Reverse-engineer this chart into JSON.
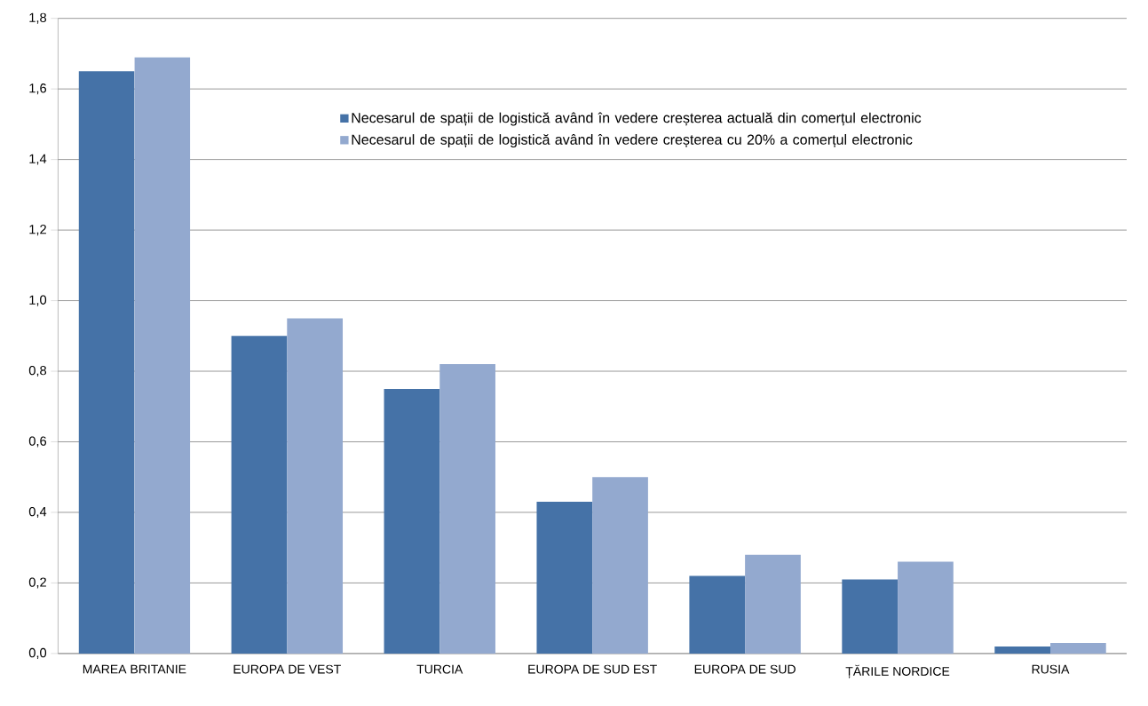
{
  "chart_data": {
    "type": "bar",
    "categories": [
      "MAREA BRITANIE",
      "EUROPA DE VEST",
      "TURCIA",
      "EUROPA DE SUD EST",
      "EUROPA DE SUD",
      "ȚĂRILE NORDICE",
      "RUSIA"
    ],
    "series": [
      {
        "name": "Necesarul de spații de logistică având în vedere creșterea actuală din comerțul electronic",
        "color": "#4572a7",
        "values": [
          1.65,
          0.9,
          0.75,
          0.43,
          0.22,
          0.21,
          0.02
        ]
      },
      {
        "name": "Necesarul de spații de logistică având în vedere creșterea cu 20% a comerțul electronic",
        "color": "#93a9cf",
        "values": [
          1.69,
          0.95,
          0.82,
          0.5,
          0.28,
          0.26,
          0.03
        ]
      }
    ],
    "ylim": [
      0,
      1.8
    ],
    "yticks": [
      {
        "value": 0,
        "label": "0,0"
      },
      {
        "value": 0.2,
        "label": "0,2"
      },
      {
        "value": 0.4,
        "label": "0,4"
      },
      {
        "value": 0.6,
        "label": "0,6"
      },
      {
        "value": 0.8,
        "label": "0,8"
      },
      {
        "value": 1.0,
        "label": "1,0"
      },
      {
        "value": 1.2,
        "label": "1,2"
      },
      {
        "value": 1.4,
        "label": "1,4"
      },
      {
        "value": 1.6,
        "label": "1,6"
      },
      {
        "value": 1.8,
        "label": "1,8"
      }
    ],
    "grid": "y",
    "legend": "top right"
  }
}
